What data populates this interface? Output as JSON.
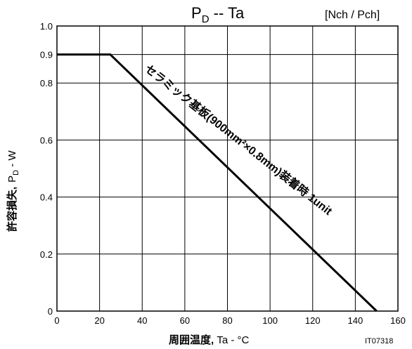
{
  "chart_data": {
    "type": "line",
    "title_main": "P",
    "title_sub": "D",
    "title_rest": "  --  Ta",
    "subtitle": "[Nch / Pch]",
    "ylabel_jp": "許容損失,",
    "ylabel_sym": "P",
    "ylabel_sub": "D",
    "ylabel_unit": " - W",
    "xlabel_jp": "周囲温度,",
    "xlabel_rest": " Ta - °C",
    "xlim": [
      0,
      160
    ],
    "ylim": [
      0,
      1.0
    ],
    "xticks": [
      "0",
      "20",
      "40",
      "60",
      "80",
      "100",
      "120",
      "140",
      "160"
    ],
    "yticks": [
      "0",
      "0.2",
      "0.4",
      "0.6",
      "0.8",
      "0.9",
      "1.0"
    ],
    "ytick_values": [
      0,
      0.2,
      0.4,
      0.6,
      0.8,
      0.9,
      1.0
    ],
    "xtick_values": [
      0,
      20,
      40,
      60,
      80,
      100,
      120,
      140,
      160
    ],
    "series": [
      {
        "x": [
          0,
          25,
          150
        ],
        "y": [
          0.9,
          0.9,
          0
        ]
      }
    ],
    "annotation": "セラミック基板(900mm²×0.8mm)装着時 1unit",
    "figure_code": "IT07318"
  }
}
